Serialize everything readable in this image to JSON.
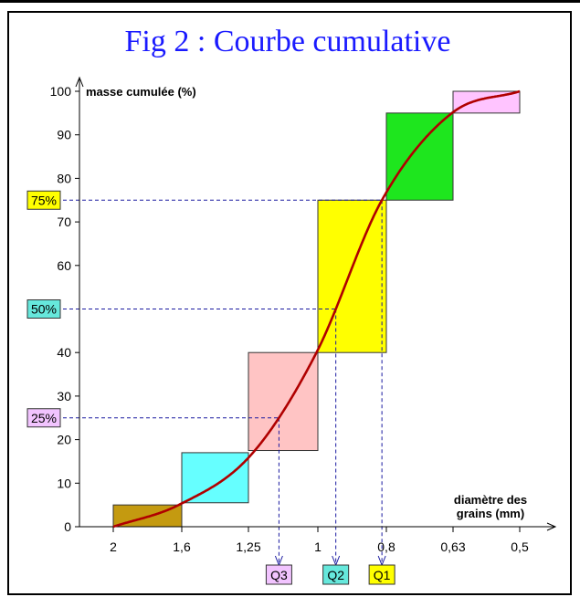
{
  "chart_data": {
    "type": "line",
    "title": "Fig 2 : Courbe cumulative",
    "ylabel": "masse cumulée (%)",
    "xlabel_line1": "diamètre des",
    "xlabel_line2": "grains (mm)",
    "ylim": [
      0,
      100
    ],
    "yticks": [
      0,
      10,
      20,
      30,
      40,
      60,
      70,
      80,
      90,
      100
    ],
    "x_tick_labels": [
      "2",
      "1,6",
      "1,25",
      "1",
      "0,8",
      "0,63",
      "0,5"
    ],
    "x_scale": "log, decreasing",
    "grid": false,
    "steps": [
      {
        "from": "2",
        "to": "1,6",
        "low": 0,
        "high": 5,
        "color": "#c49a10"
      },
      {
        "from": "1,6",
        "to": "1,25",
        "low": 5.5,
        "high": 17,
        "color": "#66ffff"
      },
      {
        "from": "1,25",
        "to": "1",
        "low": 17.5,
        "high": 40,
        "color": "#ffc4c4"
      },
      {
        "from": "1",
        "to": "0,8",
        "low": 40,
        "high": 75,
        "color": "#ffff00"
      },
      {
        "from": "0,8",
        "to": "0,63",
        "low": 75,
        "high": 95,
        "color": "#1ee61e"
      },
      {
        "from": "0,63",
        "to": "0,5",
        "low": 95,
        "high": 100,
        "color": "#ffc4ff"
      }
    ],
    "curve": {
      "color": "#b00000",
      "points": [
        [
          2,
          0
        ],
        [
          1.6,
          5
        ],
        [
          1.25,
          16.5
        ],
        [
          1,
          40
        ],
        [
          0.8,
          75
        ],
        [
          0.63,
          95
        ],
        [
          0.5,
          100
        ]
      ]
    },
    "percent_markers": [
      {
        "label": "75%",
        "value": 75,
        "color": "#ffff00"
      },
      {
        "label": "50%",
        "value": 50,
        "color": "#66e8dc"
      },
      {
        "label": "25%",
        "value": 25,
        "color": "#f2c4ff"
      }
    ],
    "quartiles": [
      {
        "label": "Q3",
        "percent": 25,
        "color": "#f2c4ff"
      },
      {
        "label": "Q2",
        "percent": 50,
        "color": "#66e8dc"
      },
      {
        "label": "Q1",
        "percent": 75,
        "color": "#ffff00"
      }
    ]
  }
}
